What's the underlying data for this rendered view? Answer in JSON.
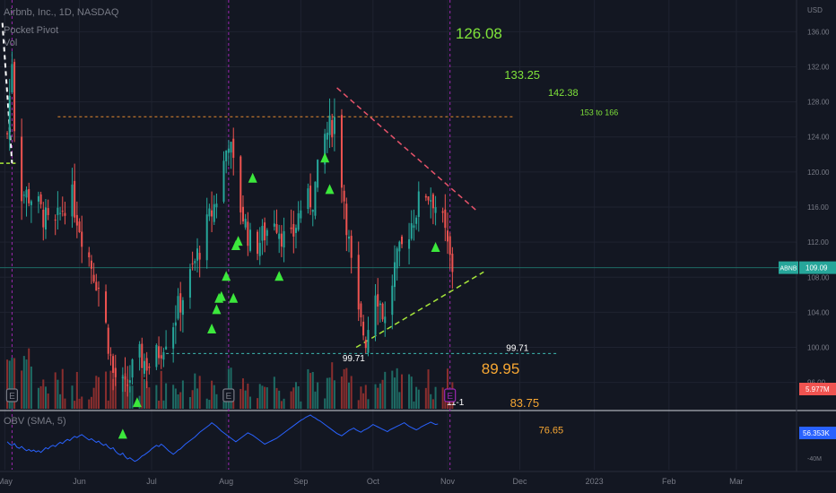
{
  "header": {
    "symbol_line": "Airbnb, Inc., 1D, NASDAQ",
    "indicator_1": "Pocket Pivot",
    "indicator_2": "Vol"
  },
  "colors": {
    "background": "#131722",
    "up": "#26a69a",
    "down": "#ef5350",
    "up_volume": "#1e6b64",
    "down_volume": "#8a2e2e",
    "marker": "#3ce83c",
    "target_green": "#7fe33a",
    "target_orange": "#f7a733",
    "obv_line": "#2962ff",
    "resistance": "#e68a2e",
    "support": "#3dbab3",
    "trend_top": "#e8536a",
    "trend_bottom": "#a6e63a",
    "last_price_tag": "#26a69a",
    "volume_tag": "#ef5350",
    "obv_tag": "#2962ff"
  },
  "chart_data": {
    "type": "candlestick",
    "title": "Airbnb, Inc., 1D, NASDAQ",
    "price_axis": {
      "currency": "USD",
      "ylim": [
        93,
        139
      ],
      "ticks": [
        "136.00",
        "132.00",
        "128.00",
        "124.00",
        "120.00",
        "116.00",
        "112.00",
        "108.00",
        "104.00",
        "100.00",
        "96.00"
      ]
    },
    "time_axis": {
      "labels": [
        {
          "label": "May",
          "day": 0
        },
        {
          "label": "Jun",
          "day": 31
        },
        {
          "label": "Jul",
          "day": 61
        },
        {
          "label": "Aug",
          "day": 92
        },
        {
          "label": "Sep",
          "day": 123
        },
        {
          "label": "Oct",
          "day": 153
        },
        {
          "label": "Nov",
          "day": 184
        },
        {
          "label": "Dec",
          "day": 214
        },
        {
          "label": "2023",
          "day": 245
        },
        {
          "label": "Feb",
          "day": 276
        },
        {
          "label": "Mar",
          "day": 304
        }
      ],
      "xlim_days": [
        -2,
        329
      ]
    },
    "events": [
      {
        "label": "E",
        "day": 3
      },
      {
        "label": "E",
        "day": 93
      },
      {
        "label": "E",
        "day": 185
      }
    ],
    "vertical_markers_days": [
      3,
      93,
      185
    ],
    "annotations": {
      "resistance": {
        "price": 126.3,
        "from_day": 22,
        "to_day": 212
      },
      "support": {
        "price": 99.3,
        "from_day": 67,
        "to_day": 230
      },
      "trend_top": {
        "from": [
          138,
          129.6
        ],
        "to": [
          196,
          115.6
        ]
      },
      "trend_bottom": {
        "from": [
          146,
          100.0
        ],
        "to": [
          199,
          108.6
        ]
      },
      "low_labels": [
        {
          "text": "99.71",
          "day": 145,
          "price": 98.4
        },
        {
          "text": "99.71",
          "day": 213,
          "price": 99.6
        }
      ],
      "date_label": {
        "text": "11-1",
        "day": 185,
        "price": 93.4
      },
      "upside_targets": [
        {
          "text": "126.08",
          "day": 197,
          "price": 135.2,
          "size": 17
        },
        {
          "text": "133.25",
          "day": 215,
          "price": 130.6,
          "size": 13
        },
        {
          "text": "142.38",
          "day": 232,
          "price": 128.7,
          "size": 11
        },
        {
          "text": "153 to 166",
          "day": 247,
          "price": 126.5,
          "size": 9
        }
      ],
      "downside_targets": [
        {
          "text": "89.95",
          "day": 206,
          "price": 97.0,
          "size": 17
        },
        {
          "text": "83.75",
          "day": 216,
          "price": 93.2,
          "size": 13
        },
        {
          "text": "76.65",
          "day": 227,
          "price": 90.2,
          "size": 11
        }
      ]
    },
    "pocket_pivot_markers": [
      {
        "day": 49,
        "price": 90.0
      },
      {
        "day": 55,
        "price": 93.6
      },
      {
        "day": 86,
        "price": 102.0
      },
      {
        "day": 88,
        "price": 104.2
      },
      {
        "day": 89,
        "price": 105.5
      },
      {
        "day": 90,
        "price": 105.7
      },
      {
        "day": 92,
        "price": 108.0
      },
      {
        "day": 95,
        "price": 105.5
      },
      {
        "day": 96,
        "price": 111.5
      },
      {
        "day": 97,
        "price": 112.0
      },
      {
        "day": 103,
        "price": 119.2
      },
      {
        "day": 114,
        "price": 108.0
      },
      {
        "day": 133,
        "price": 121.5
      },
      {
        "day": 135,
        "price": 117.9
      },
      {
        "day": 179,
        "price": 111.3
      }
    ],
    "last_price": {
      "label": "ABNB",
      "value": "109.09",
      "price": 109.09
    },
    "volume_readout": "5.977M",
    "obv": {
      "title": "OBV (SMA, 5)",
      "readout": "56.353K",
      "axis_label": "-40M",
      "ylim": [
        -55,
        40
      ],
      "values": [
        -8,
        -12,
        -14,
        -11,
        -17,
        -19,
        -16,
        -20,
        -23,
        -21,
        -24,
        -22,
        -25,
        -23,
        -26,
        -22,
        -18,
        -20,
        -16,
        -14,
        -16,
        -12,
        -9,
        -11,
        -7,
        -4,
        -6,
        -2,
        1,
        -1,
        2,
        4,
        1,
        -2,
        -5,
        -3,
        -6,
        -9,
        -7,
        -11,
        -14,
        -12,
        -17,
        -20,
        -18,
        -24,
        -28,
        -30,
        -27,
        -33,
        -37,
        -35,
        -38,
        -41,
        -39,
        -36,
        -32,
        -30,
        -27,
        -24,
        -20,
        -17,
        -14,
        -16,
        -12,
        -15,
        -19,
        -23,
        -26,
        -29,
        -26,
        -22,
        -20,
        -16,
        -12,
        -9,
        -6,
        -3,
        0,
        4,
        8,
        11,
        14,
        17,
        20,
        24,
        21,
        18,
        14,
        10,
        7,
        4,
        1,
        -2,
        -5,
        -8,
        -5,
        -2,
        1,
        4,
        7,
        5,
        3,
        0,
        -3,
        -6,
        -9,
        -12,
        -10,
        -8,
        -6,
        -4,
        -2,
        1,
        4,
        7,
        10,
        13,
        16,
        19,
        22,
        25,
        28,
        30,
        33,
        35,
        37,
        34,
        32,
        29,
        27,
        24,
        21,
        18,
        15,
        12,
        9,
        6,
        4,
        2,
        5,
        8,
        11,
        13,
        15,
        12,
        10,
        8,
        11,
        13,
        15,
        18,
        21,
        19,
        17,
        15,
        13,
        11,
        9,
        12,
        14,
        16,
        18,
        20,
        22,
        24,
        21,
        18,
        16,
        14,
        12,
        14,
        17,
        19,
        21,
        23,
        25,
        23,
        21,
        22
      ]
    },
    "candles_note": "OHLC generated in script from close path"
  }
}
